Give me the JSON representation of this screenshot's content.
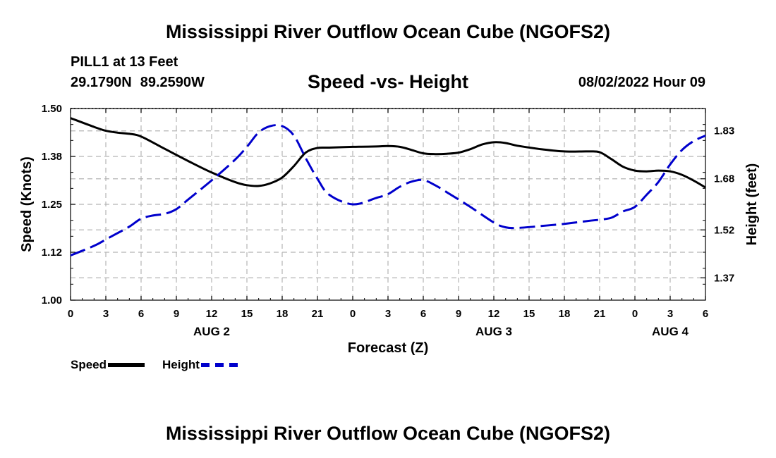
{
  "header": {
    "title": "Mississippi River Outflow Ocean Cube (NGOFS2)",
    "station": "PILL1 at 13 Feet",
    "lat": "29.1790N",
    "lon": "89.2590W",
    "subtitle": "Speed -vs- Height",
    "datetime": "08/02/2022 Hour 09"
  },
  "footer": {
    "title": "Mississippi River Outflow Ocean Cube (NGOFS2)"
  },
  "legend": {
    "speed_label": "Speed",
    "height_label": "Height"
  },
  "chart_data": {
    "type": "line",
    "title": "Speed -vs- Height",
    "xlabel": "Forecast (Z)",
    "ylabel": "Speed (Knots)",
    "y2label": "Height (feet)",
    "x_range": [
      0,
      54
    ],
    "ylim": [
      1.0,
      1.5
    ],
    "y2lim": [
      1.3,
      1.9
    ],
    "yticks": [
      {
        "value": 1.0,
        "label": "1.00"
      },
      {
        "value": 1.125,
        "label": "1.12"
      },
      {
        "value": 1.25,
        "label": "1.25"
      },
      {
        "value": 1.375,
        "label": "1.38"
      },
      {
        "value": 1.5,
        "label": "1.50"
      }
    ],
    "y2ticks": [
      {
        "value": 1.37,
        "label": "1.37"
      },
      {
        "value": 1.52,
        "label": "1.52"
      },
      {
        "value": 1.68,
        "label": "1.68"
      },
      {
        "value": 1.83,
        "label": "1.83"
      }
    ],
    "xticks": [
      {
        "x": 0,
        "label": "0"
      },
      {
        "x": 3,
        "label": "3"
      },
      {
        "x": 6,
        "label": "6"
      },
      {
        "x": 9,
        "label": "9"
      },
      {
        "x": 12,
        "label": "12"
      },
      {
        "x": 15,
        "label": "15"
      },
      {
        "x": 18,
        "label": "18"
      },
      {
        "x": 21,
        "label": "21"
      },
      {
        "x": 24,
        "label": "0"
      },
      {
        "x": 27,
        "label": "3"
      },
      {
        "x": 30,
        "label": "6"
      },
      {
        "x": 33,
        "label": "9"
      },
      {
        "x": 36,
        "label": "12"
      },
      {
        "x": 39,
        "label": "15"
      },
      {
        "x": 42,
        "label": "18"
      },
      {
        "x": 45,
        "label": "21"
      },
      {
        "x": 48,
        "label": "0"
      },
      {
        "x": 51,
        "label": "3"
      },
      {
        "x": 54,
        "label": "6"
      }
    ],
    "day_labels": [
      {
        "x": 12,
        "label": "AUG 2"
      },
      {
        "x": 36,
        "label": "AUG 3"
      },
      {
        "x": 51,
        "label": "AUG 4"
      }
    ],
    "series": [
      {
        "name": "Speed",
        "axis": "left",
        "color": "#000000",
        "dash": "solid",
        "x": [
          0,
          2,
          3,
          4,
          5,
          6,
          8,
          10,
          12,
          14,
          15,
          16,
          17,
          18,
          19,
          20,
          21,
          22,
          24,
          26,
          27,
          28,
          29,
          30,
          31,
          32,
          33,
          34,
          35,
          36,
          37,
          38,
          40,
          42,
          44,
          45,
          46,
          47,
          48,
          49,
          50,
          51,
          52,
          53,
          54
        ],
        "values": [
          1.475,
          1.452,
          1.442,
          1.437,
          1.434,
          1.427,
          1.395,
          1.363,
          1.333,
          1.308,
          1.3,
          1.298,
          1.305,
          1.32,
          1.35,
          1.385,
          1.397,
          1.398,
          1.4,
          1.401,
          1.402,
          1.4,
          1.392,
          1.383,
          1.381,
          1.382,
          1.385,
          1.394,
          1.406,
          1.412,
          1.41,
          1.403,
          1.394,
          1.388,
          1.388,
          1.386,
          1.368,
          1.348,
          1.338,
          1.336,
          1.338,
          1.336,
          1.327,
          1.312,
          1.294
        ]
      },
      {
        "name": "Height",
        "axis": "right",
        "color": "#0000cc",
        "dash": "dashed",
        "x": [
          0,
          2,
          3,
          4,
          5,
          6,
          7,
          8,
          9,
          10,
          12,
          14,
          15,
          16,
          17,
          18,
          19,
          20,
          21,
          22,
          24,
          26,
          27,
          28,
          29,
          30,
          31,
          32,
          34,
          36,
          37,
          38,
          40,
          42,
          44,
          45,
          46,
          47,
          48,
          49,
          50,
          51,
          52,
          53,
          54
        ],
        "values": [
          1.44,
          1.47,
          1.49,
          1.51,
          1.53,
          1.555,
          1.565,
          1.57,
          1.585,
          1.615,
          1.675,
          1.74,
          1.78,
          1.825,
          1.845,
          1.845,
          1.815,
          1.745,
          1.68,
          1.63,
          1.6,
          1.62,
          1.632,
          1.655,
          1.671,
          1.676,
          1.66,
          1.638,
          1.592,
          1.543,
          1.528,
          1.526,
          1.532,
          1.539,
          1.548,
          1.552,
          1.558,
          1.578,
          1.592,
          1.63,
          1.67,
          1.725,
          1.77,
          1.798,
          1.815
        ]
      }
    ]
  }
}
